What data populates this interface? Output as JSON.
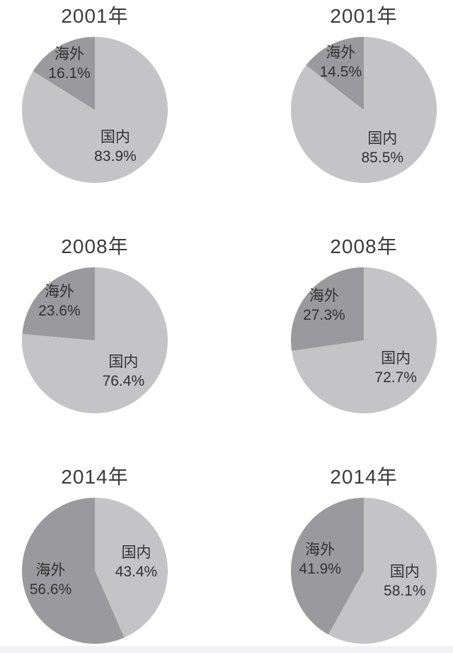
{
  "page": {
    "background": "#ffffff",
    "bottom_band_color": "#f2f2f4"
  },
  "colors": {
    "domestic_slice": "#c4c4c7",
    "overseas_slice": "#9a9a9e",
    "title_text": "#3b3b3b",
    "label_text": "#333333"
  },
  "chart_data": [
    {
      "type": "pie",
      "title": "2001年",
      "start_angle_deg": 0,
      "direction": "clockwise",
      "legend_position": "inside",
      "slices": [
        {
          "label": "国内",
          "value": 83.9,
          "display": "83.9%"
        },
        {
          "label": "海外",
          "value": 16.1,
          "display": "16.1%"
        }
      ]
    },
    {
      "type": "pie",
      "title": "2001年",
      "start_angle_deg": 0,
      "direction": "clockwise",
      "legend_position": "inside",
      "slices": [
        {
          "label": "国内",
          "value": 85.5,
          "display": "85.5%"
        },
        {
          "label": "海外",
          "value": 14.5,
          "display": "14.5%"
        }
      ]
    },
    {
      "type": "pie",
      "title": "2008年",
      "start_angle_deg": 0,
      "direction": "clockwise",
      "legend_position": "inside",
      "slices": [
        {
          "label": "国内",
          "value": 76.4,
          "display": "76.4%"
        },
        {
          "label": "海外",
          "value": 23.6,
          "display": "23.6%"
        }
      ]
    },
    {
      "type": "pie",
      "title": "2008年",
      "start_angle_deg": 0,
      "direction": "clockwise",
      "legend_position": "inside",
      "slices": [
        {
          "label": "国内",
          "value": 72.7,
          "display": "72.7%"
        },
        {
          "label": "海外",
          "value": 27.3,
          "display": "27.3%"
        }
      ]
    },
    {
      "type": "pie",
      "title": "2014年",
      "start_angle_deg": 0,
      "direction": "clockwise",
      "legend_position": "inside",
      "slices": [
        {
          "label": "国内",
          "value": 43.4,
          "display": "43.4%"
        },
        {
          "label": "海外",
          "value": 56.6,
          "display": "56.6%"
        }
      ]
    },
    {
      "type": "pie",
      "title": "2014年",
      "start_angle_deg": 0,
      "direction": "clockwise",
      "legend_position": "inside",
      "slices": [
        {
          "label": "国内",
          "value": 58.1,
          "display": "58.1%"
        },
        {
          "label": "海外",
          "value": 41.9,
          "display": "41.9%"
        }
      ]
    }
  ]
}
